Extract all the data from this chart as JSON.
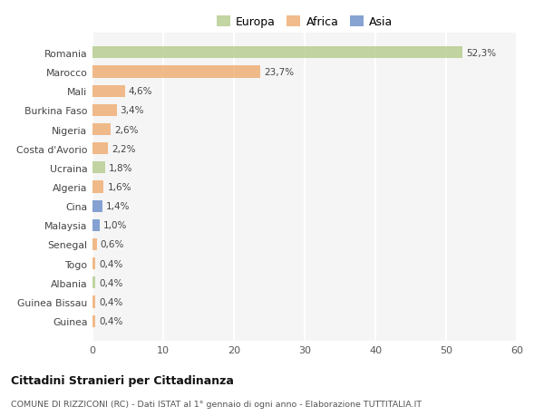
{
  "categories": [
    "Romania",
    "Marocco",
    "Mali",
    "Burkina Faso",
    "Nigeria",
    "Costa d'Avorio",
    "Ucraina",
    "Algeria",
    "Cina",
    "Malaysia",
    "Senegal",
    "Togo",
    "Albania",
    "Guinea Bissau",
    "Guinea"
  ],
  "values": [
    52.3,
    23.7,
    4.6,
    3.4,
    2.6,
    2.2,
    1.8,
    1.6,
    1.4,
    1.0,
    0.6,
    0.4,
    0.4,
    0.4,
    0.4
  ],
  "labels": [
    "52,3%",
    "23,7%",
    "4,6%",
    "3,4%",
    "2,6%",
    "2,2%",
    "1,8%",
    "1,6%",
    "1,4%",
    "1,0%",
    "0,6%",
    "0,4%",
    "0,4%",
    "0,4%",
    "0,4%"
  ],
  "continent": [
    "Europa",
    "Africa",
    "Africa",
    "Africa",
    "Africa",
    "Africa",
    "Europa",
    "Africa",
    "Asia",
    "Asia",
    "Africa",
    "Africa",
    "Europa",
    "Africa",
    "Africa"
  ],
  "colors": {
    "Europa": "#b5cc8e",
    "Africa": "#f0ac72",
    "Asia": "#6b8fc9"
  },
  "legend_labels": [
    "Europa",
    "Africa",
    "Asia"
  ],
  "legend_colors": [
    "#b5cc8e",
    "#f0ac72",
    "#6b8fc9"
  ],
  "xlim": [
    0,
    60
  ],
  "xticks": [
    0,
    10,
    20,
    30,
    40,
    50,
    60
  ],
  "title": "Cittadini Stranieri per Cittadinanza",
  "subtitle": "COMUNE DI RIZZICONI (RC) - Dati ISTAT al 1° gennaio di ogni anno - Elaborazione TUTTITALIA.IT",
  "bg_color": "#ffffff",
  "plot_bg_color": "#f5f5f5",
  "grid_color": "#ffffff",
  "bar_alpha": 0.82
}
